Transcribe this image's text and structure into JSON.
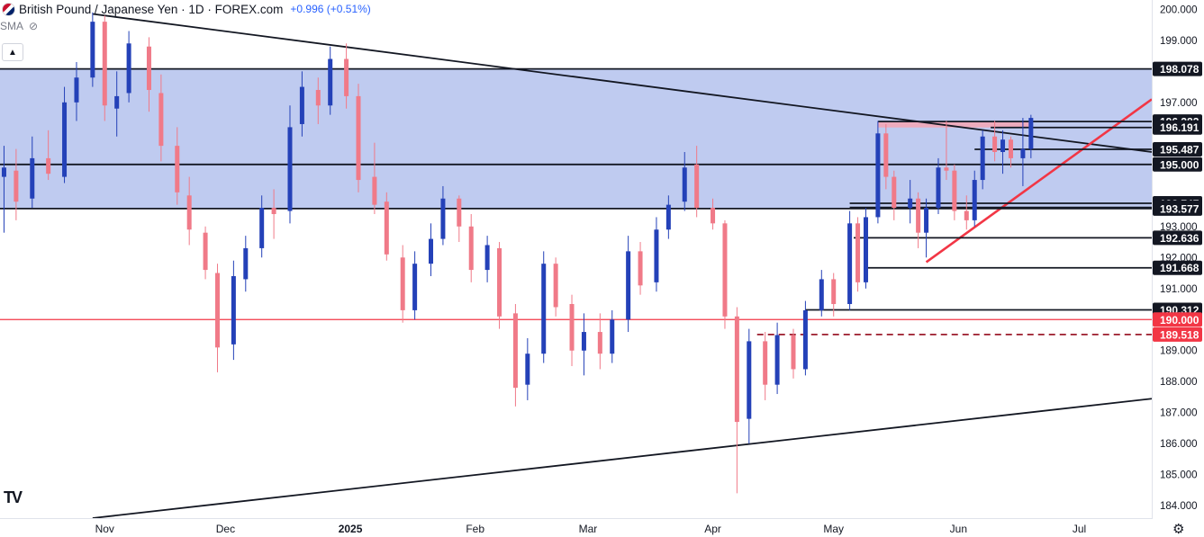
{
  "header": {
    "title": "British Pound / Japanese Yen · 1D · FOREX.com",
    "change": "+0.996 (+0.51%)",
    "indicator": "SMA"
  },
  "colors": {
    "up": "#2441b8",
    "down": "#f07a88",
    "zone": "#bcc8ef",
    "line_black": "#131722",
    "line_red": "#f23645",
    "tag_red": "#f23645"
  },
  "chart_data": {
    "type": "candlestick",
    "title": "British Pound / Japanese Yen · 1D · FOREX.com",
    "ylim": [
      183.6,
      200.3
    ],
    "y_ticks": [
      "200.000",
      "199.000",
      "197.000",
      "193.000",
      "192.000",
      "191.000",
      "189.000",
      "188.000",
      "187.000",
      "186.000",
      "185.000",
      "184.000"
    ],
    "x_ticks": [
      {
        "label": "Nov",
        "date": "2024-11-01"
      },
      {
        "label": "Dec",
        "date": "2024-12-01"
      },
      {
        "label": "2025",
        "date": "2025-01-01"
      },
      {
        "label": "Feb",
        "date": "2025-02-01"
      },
      {
        "label": "Mar",
        "date": "2025-03-01"
      },
      {
        "label": "Apr",
        "date": "2025-04-01"
      },
      {
        "label": "May",
        "date": "2025-05-01"
      },
      {
        "label": "Jun",
        "date": "2025-06-01"
      },
      {
        "label": "Jul",
        "date": "2025-07-01"
      }
    ],
    "x_range": [
      "2024-10-06",
      "2025-07-19"
    ],
    "candles": [
      {
        "d": "2024-10-07",
        "o": 194.6,
        "h": 195.6,
        "l": 192.8,
        "c": 194.9
      },
      {
        "d": "2024-10-10",
        "o": 194.8,
        "h": 195.5,
        "l": 193.2,
        "c": 193.8
      },
      {
        "d": "2024-10-14",
        "o": 193.9,
        "h": 195.9,
        "l": 193.6,
        "c": 195.2
      },
      {
        "d": "2024-10-18",
        "o": 195.2,
        "h": 196.1,
        "l": 194.5,
        "c": 194.7
      },
      {
        "d": "2024-10-22",
        "o": 194.6,
        "h": 197.5,
        "l": 194.4,
        "c": 197.0
      },
      {
        "d": "2024-10-25",
        "o": 197.0,
        "h": 198.3,
        "l": 196.4,
        "c": 197.8
      },
      {
        "d": "2024-10-29",
        "o": 197.8,
        "h": 199.9,
        "l": 197.5,
        "c": 199.6
      },
      {
        "d": "2024-11-01",
        "o": 199.6,
        "h": 199.8,
        "l": 196.4,
        "c": 196.9
      },
      {
        "d": "2024-11-04",
        "o": 196.8,
        "h": 198.0,
        "l": 195.9,
        "c": 197.2
      },
      {
        "d": "2024-11-07",
        "o": 197.3,
        "h": 199.3,
        "l": 197.0,
        "c": 198.9
      },
      {
        "d": "2024-11-12",
        "o": 198.8,
        "h": 199.1,
        "l": 196.7,
        "c": 197.4
      },
      {
        "d": "2024-11-15",
        "o": 197.3,
        "h": 197.9,
        "l": 195.1,
        "c": 195.6
      },
      {
        "d": "2024-11-19",
        "o": 195.6,
        "h": 196.2,
        "l": 193.7,
        "c": 194.1
      },
      {
        "d": "2024-11-22",
        "o": 194.0,
        "h": 194.6,
        "l": 192.4,
        "c": 192.9
      },
      {
        "d": "2024-11-26",
        "o": 192.8,
        "h": 193.0,
        "l": 191.3,
        "c": 191.6
      },
      {
        "d": "2024-11-29",
        "o": 191.5,
        "h": 191.8,
        "l": 188.3,
        "c": 189.1
      },
      {
        "d": "2024-12-03",
        "o": 189.2,
        "h": 191.9,
        "l": 188.7,
        "c": 191.4
      },
      {
        "d": "2024-12-06",
        "o": 191.3,
        "h": 192.7,
        "l": 190.9,
        "c": 192.3
      },
      {
        "d": "2024-12-10",
        "o": 192.3,
        "h": 194.0,
        "l": 192.0,
        "c": 193.6
      },
      {
        "d": "2024-12-13",
        "o": 193.6,
        "h": 194.2,
        "l": 192.6,
        "c": 193.4
      },
      {
        "d": "2024-12-17",
        "o": 193.5,
        "h": 196.9,
        "l": 193.1,
        "c": 196.2
      },
      {
        "d": "2024-12-20",
        "o": 196.3,
        "h": 198.0,
        "l": 195.9,
        "c": 197.5
      },
      {
        "d": "2024-12-24",
        "o": 197.4,
        "h": 197.8,
        "l": 196.3,
        "c": 196.9
      },
      {
        "d": "2024-12-27",
        "o": 196.9,
        "h": 198.8,
        "l": 196.6,
        "c": 198.4
      },
      {
        "d": "2024-12-31",
        "o": 198.4,
        "h": 198.9,
        "l": 196.8,
        "c": 197.2
      },
      {
        "d": "2025-01-03",
        "o": 197.2,
        "h": 197.6,
        "l": 194.1,
        "c": 194.5
      },
      {
        "d": "2025-01-07",
        "o": 194.6,
        "h": 195.7,
        "l": 193.4,
        "c": 193.7
      },
      {
        "d": "2025-01-10",
        "o": 193.8,
        "h": 194.1,
        "l": 191.9,
        "c": 192.1
      },
      {
        "d": "2025-01-14",
        "o": 192.0,
        "h": 192.4,
        "l": 189.9,
        "c": 190.3
      },
      {
        "d": "2025-01-17",
        "o": 190.3,
        "h": 192.2,
        "l": 190.0,
        "c": 191.8
      },
      {
        "d": "2025-01-21",
        "o": 191.8,
        "h": 193.1,
        "l": 191.4,
        "c": 192.6
      },
      {
        "d": "2025-01-24",
        "o": 192.6,
        "h": 194.3,
        "l": 192.4,
        "c": 193.9
      },
      {
        "d": "2025-01-28",
        "o": 193.9,
        "h": 194.0,
        "l": 192.5,
        "c": 193.0
      },
      {
        "d": "2025-01-31",
        "o": 193.0,
        "h": 193.4,
        "l": 191.2,
        "c": 191.6
      },
      {
        "d": "2025-02-04",
        "o": 191.6,
        "h": 192.7,
        "l": 191.2,
        "c": 192.4
      },
      {
        "d": "2025-02-07",
        "o": 192.3,
        "h": 192.5,
        "l": 189.7,
        "c": 190.1
      },
      {
        "d": "2025-02-11",
        "o": 190.2,
        "h": 190.5,
        "l": 187.2,
        "c": 187.8
      },
      {
        "d": "2025-02-14",
        "o": 187.9,
        "h": 189.4,
        "l": 187.4,
        "c": 188.9
      },
      {
        "d": "2025-02-18",
        "o": 188.9,
        "h": 192.2,
        "l": 188.6,
        "c": 191.8
      },
      {
        "d": "2025-02-21",
        "o": 191.8,
        "h": 192.0,
        "l": 190.1,
        "c": 190.4
      },
      {
        "d": "2025-02-25",
        "o": 190.5,
        "h": 190.8,
        "l": 188.5,
        "c": 189.0
      },
      {
        "d": "2025-02-28",
        "o": 189.0,
        "h": 190.2,
        "l": 188.2,
        "c": 189.6
      },
      {
        "d": "2025-03-04",
        "o": 189.6,
        "h": 190.2,
        "l": 188.4,
        "c": 188.9
      },
      {
        "d": "2025-03-07",
        "o": 188.9,
        "h": 190.3,
        "l": 188.6,
        "c": 190.0
      },
      {
        "d": "2025-03-11",
        "o": 190.0,
        "h": 192.7,
        "l": 189.6,
        "c": 192.2
      },
      {
        "d": "2025-03-14",
        "o": 192.2,
        "h": 192.5,
        "l": 190.8,
        "c": 191.1
      },
      {
        "d": "2025-03-18",
        "o": 191.2,
        "h": 193.3,
        "l": 190.9,
        "c": 192.9
      },
      {
        "d": "2025-03-21",
        "o": 192.9,
        "h": 194.0,
        "l": 192.6,
        "c": 193.7
      },
      {
        "d": "2025-03-25",
        "o": 193.8,
        "h": 195.4,
        "l": 193.5,
        "c": 194.9
      },
      {
        "d": "2025-03-28",
        "o": 195.0,
        "h": 195.6,
        "l": 193.3,
        "c": 193.6
      },
      {
        "d": "2025-04-01",
        "o": 193.6,
        "h": 193.9,
        "l": 192.9,
        "c": 193.1
      },
      {
        "d": "2025-04-04",
        "o": 193.1,
        "h": 193.2,
        "l": 189.7,
        "c": 190.1
      },
      {
        "d": "2025-04-07",
        "o": 190.1,
        "h": 190.4,
        "l": 184.4,
        "c": 186.7
      },
      {
        "d": "2025-04-10",
        "o": 186.8,
        "h": 189.7,
        "l": 186.0,
        "c": 189.3
      },
      {
        "d": "2025-04-14",
        "o": 189.3,
        "h": 189.6,
        "l": 187.4,
        "c": 187.9
      },
      {
        "d": "2025-04-17",
        "o": 187.9,
        "h": 189.9,
        "l": 187.6,
        "c": 189.5
      },
      {
        "d": "2025-04-21",
        "o": 189.5,
        "h": 189.7,
        "l": 188.1,
        "c": 188.4
      },
      {
        "d": "2025-04-24",
        "o": 188.4,
        "h": 190.6,
        "l": 188.2,
        "c": 190.3
      },
      {
        "d": "2025-04-28",
        "o": 190.3,
        "h": 191.6,
        "l": 190.1,
        "c": 191.3
      },
      {
        "d": "2025-05-01",
        "o": 191.3,
        "h": 191.5,
        "l": 190.1,
        "c": 190.5
      },
      {
        "d": "2025-05-05",
        "o": 190.5,
        "h": 193.5,
        "l": 190.3,
        "c": 193.1
      },
      {
        "d": "2025-05-07",
        "o": 193.1,
        "h": 193.3,
        "l": 190.9,
        "c": 191.2
      },
      {
        "d": "2025-05-09",
        "o": 191.2,
        "h": 193.6,
        "l": 191.0,
        "c": 193.3
      },
      {
        "d": "2025-05-12",
        "o": 193.3,
        "h": 196.4,
        "l": 193.1,
        "c": 196.0
      },
      {
        "d": "2025-05-14",
        "o": 196.0,
        "h": 196.3,
        "l": 194.2,
        "c": 194.6
      },
      {
        "d": "2025-05-16",
        "o": 194.6,
        "h": 194.8,
        "l": 193.2,
        "c": 193.6
      },
      {
        "d": "2025-05-20",
        "o": 193.6,
        "h": 194.5,
        "l": 193.1,
        "c": 193.9
      },
      {
        "d": "2025-05-22",
        "o": 193.9,
        "h": 194.1,
        "l": 192.3,
        "c": 192.8
      },
      {
        "d": "2025-05-24",
        "o": 192.8,
        "h": 193.9,
        "l": 192.0,
        "c": 193.6
      },
      {
        "d": "2025-05-27",
        "o": 193.6,
        "h": 195.2,
        "l": 193.4,
        "c": 194.9
      },
      {
        "d": "2025-05-29",
        "o": 194.9,
        "h": 196.4,
        "l": 194.5,
        "c": 194.8
      },
      {
        "d": "2025-05-31",
        "o": 194.8,
        "h": 195.0,
        "l": 193.2,
        "c": 193.5
      },
      {
        "d": "2025-06-03",
        "o": 193.5,
        "h": 194.0,
        "l": 192.9,
        "c": 193.2
      },
      {
        "d": "2025-06-05",
        "o": 193.2,
        "h": 194.8,
        "l": 193.0,
        "c": 194.5
      },
      {
        "d": "2025-06-07",
        "o": 194.5,
        "h": 196.1,
        "l": 194.2,
        "c": 195.9
      },
      {
        "d": "2025-06-10",
        "o": 195.9,
        "h": 196.4,
        "l": 195.1,
        "c": 195.4
      },
      {
        "d": "2025-06-12",
        "o": 195.4,
        "h": 196.1,
        "l": 194.7,
        "c": 195.8
      },
      {
        "d": "2025-06-14",
        "o": 195.8,
        "h": 195.9,
        "l": 194.9,
        "c": 195.2
      },
      {
        "d": "2025-06-17",
        "o": 195.2,
        "h": 196.5,
        "l": 194.3,
        "c": 195.5
      },
      {
        "d": "2025-06-19",
        "o": 195.5,
        "h": 196.6,
        "l": 195.2,
        "c": 196.5
      }
    ],
    "zone": {
      "from": 193.577,
      "to": 198.078
    },
    "price_levels": [
      {
        "label": "198.078",
        "value": 198.078,
        "style": "solid",
        "color": "black"
      },
      {
        "label": "196.382",
        "value": 196.382,
        "style": "solid",
        "color": "black",
        "start": "2025-05-12"
      },
      {
        "label": "196.191",
        "value": 196.191,
        "style": "solid",
        "color": "black",
        "start": "2025-06-09"
      },
      {
        "label": "195.487",
        "value": 195.487,
        "style": "solid",
        "color": "black",
        "start": "2025-06-05"
      },
      {
        "label": "195.000",
        "value": 195.0,
        "style": "solid",
        "color": "black"
      },
      {
        "label": "193.747",
        "value": 193.747,
        "style": "solid",
        "color": "black",
        "start": "2025-05-05"
      },
      {
        "label": "193.614",
        "value": 193.614,
        "style": "solid",
        "color": "black",
        "start": "2025-05-05"
      },
      {
        "label": "193.577",
        "value": 193.577,
        "style": "solid",
        "color": "black"
      },
      {
        "label": "192.636",
        "value": 192.636,
        "style": "solid",
        "color": "black",
        "start": "2025-05-06"
      },
      {
        "label": "191.668",
        "value": 191.668,
        "style": "solid",
        "color": "black",
        "start": "2025-05-09"
      },
      {
        "label": "190.312",
        "value": 190.312,
        "style": "solid",
        "color": "black",
        "start": "2025-04-24"
      },
      {
        "label": "190.000",
        "value": 190.0,
        "style": "solid",
        "color": "red"
      },
      {
        "label": "189.518",
        "value": 189.518,
        "style": "dashed",
        "color": "darkred",
        "start": "2025-04-12"
      }
    ],
    "resistance_box": {
      "from": 196.191,
      "to": 196.382,
      "start": "2025-05-12",
      "end": "2025-06-19"
    },
    "trendlines": [
      {
        "color": "black",
        "p1": {
          "d": "2024-10-29",
          "v": 199.85
        },
        "p2": {
          "d": "2025-07-19",
          "v": 195.4
        }
      },
      {
        "color": "black",
        "p1": {
          "d": "2024-10-29",
          "v": 183.6
        },
        "p2": {
          "d": "2025-07-19",
          "v": 187.45
        }
      },
      {
        "color": "red",
        "p1": {
          "d": "2025-05-24",
          "v": 191.85
        },
        "p2": {
          "d": "2025-07-19",
          "v": 197.1
        }
      }
    ]
  }
}
